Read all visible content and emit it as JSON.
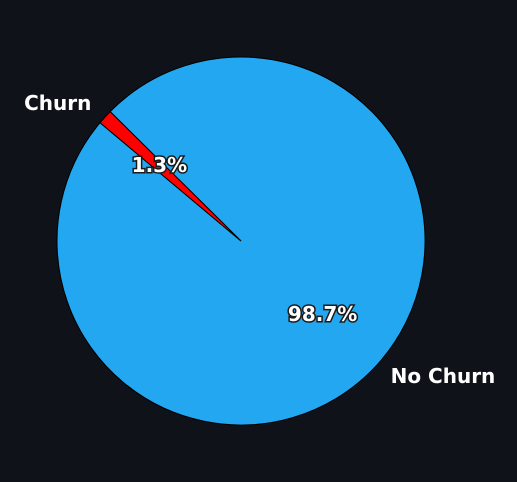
{
  "chart_data": {
    "type": "pie",
    "categories": [
      "No Churn",
      "Churn"
    ],
    "values": [
      98.7,
      1.3
    ],
    "labels": [
      "98.7%",
      "1.3%"
    ],
    "colors": [
      "#22a7f0",
      "#ff0000"
    ],
    "background": "#0f1219",
    "edge_color": "#000000",
    "start_angle_deg": 140,
    "direction": "counterclockwise",
    "legend": "none"
  }
}
